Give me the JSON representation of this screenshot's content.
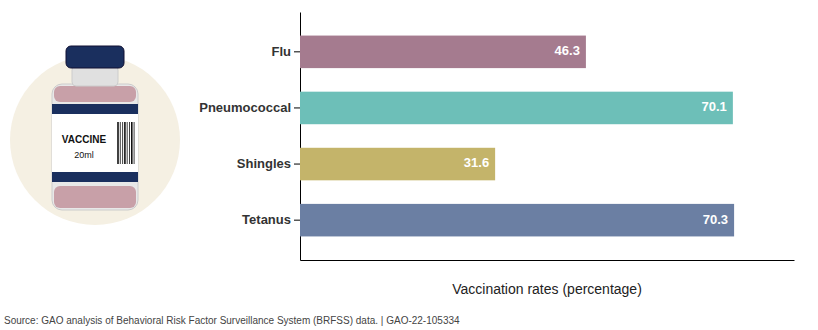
{
  "chart_data": {
    "type": "bar",
    "orientation": "horizontal",
    "categories": [
      "Flu",
      "Pneumococcal",
      "Shingles",
      "Tetanus"
    ],
    "values": [
      46.3,
      70.1,
      31.6,
      70.3
    ],
    "colors": [
      "#a57b8f",
      "#6dbfb8",
      "#c4b46a",
      "#6b7fa3"
    ],
    "xlim": [
      0,
      80
    ],
    "xlabel": "Vaccination rates (percentage)",
    "data_labels": true,
    "tick_labels": "y",
    "grid": false,
    "annotations": [
      "Source: GAO analysis of Behavioral Risk Factor Surveillance System (BRFSS) data.  |  GAO-22-105334",
      "VACCINE",
      "20ml"
    ]
  }
}
